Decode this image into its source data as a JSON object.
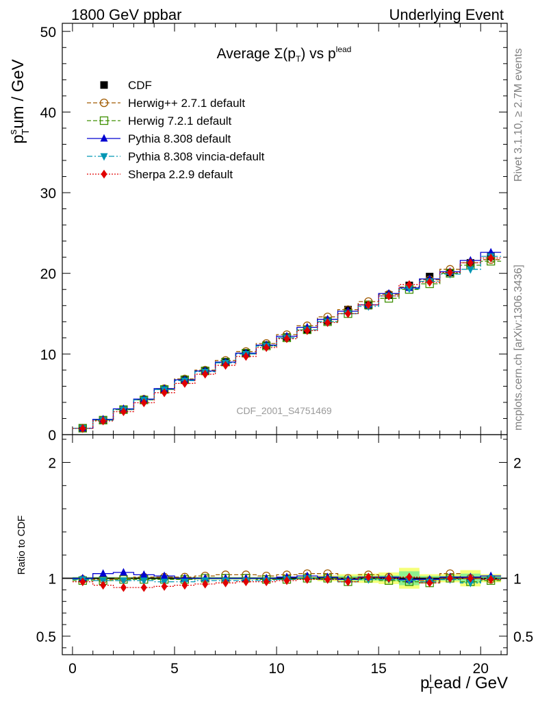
{
  "header": {
    "left": "1800 GeV ppbar",
    "right": "Underlying Event"
  },
  "side_labels": {
    "rivet": "Rivet 3.1.10, ≥ 2.7M events",
    "mcplots": "mcplots.cern.ch [arXiv:1306.3436]"
  },
  "chart_data": [
    {
      "type": "line",
      "title": "Average Σ(p_T) vs p_T^lead",
      "title_parts": {
        "main": "Average ",
        "sigma": "Σ(p",
        "sub_t": "T",
        "close": ") vs p",
        "sup": "lead"
      },
      "watermark": "CDF_2001_S4751469",
      "ylabel_parts": {
        "p": "p",
        "sup": "s",
        "sub": "T",
        "rest": "um / GeV"
      },
      "xlim": [
        -0.5,
        21.3
      ],
      "ylim": [
        0,
        51
      ],
      "yticks": [
        0,
        10,
        20,
        30,
        40,
        50
      ],
      "x": [
        0.5,
        1.5,
        2.5,
        3.5,
        4.5,
        5.5,
        6.5,
        7.5,
        8.5,
        9.5,
        10.5,
        11.5,
        12.5,
        13.5,
        14.5,
        15.5,
        16.5,
        17.5,
        18.5,
        19.5,
        20.5
      ],
      "series": [
        {
          "name": "CDF",
          "color": "#000000",
          "style": "solid",
          "marker": "square-filled",
          "values": [
            0.8,
            1.8,
            3.1,
            4.3,
            5.6,
            6.8,
            7.9,
            9.0,
            10.1,
            11.1,
            12.1,
            13.0,
            14.1,
            15.5,
            16.0,
            17.3,
            18.5,
            19.6,
            20.1,
            21.3,
            22.1
          ]
        },
        {
          "name": "Herwig++ 2.7.1 default",
          "color": "#a05a00",
          "style": "dashed",
          "marker": "circle-open",
          "values": [
            0.8,
            1.8,
            3.1,
            4.4,
            5.7,
            6.9,
            8.0,
            9.2,
            10.3,
            11.3,
            12.4,
            13.5,
            14.6,
            15.5,
            16.5,
            17.4,
            18.3,
            19.2,
            20.5,
            21.3,
            21.7
          ]
        },
        {
          "name": "Herwig 7.2.1 default",
          "color": "#3d8f00",
          "style": "dashed",
          "marker": "square-open",
          "values": [
            0.8,
            1.8,
            3.1,
            4.3,
            5.6,
            6.8,
            7.9,
            9.0,
            10.1,
            11.0,
            12.0,
            13.0,
            14.0,
            15.0,
            16.1,
            16.9,
            18.0,
            18.7,
            20.0,
            21.0,
            21.5
          ]
        },
        {
          "name": "Pythia 8.308 default",
          "color": "#0000d0",
          "style": "solid",
          "marker": "triangle-up",
          "values": [
            0.8,
            1.9,
            3.2,
            4.4,
            5.7,
            6.8,
            7.9,
            9.0,
            10.1,
            11.1,
            12.2,
            13.3,
            14.3,
            15.3,
            16.1,
            17.5,
            18.2,
            19.3,
            20.2,
            21.6,
            22.6
          ]
        },
        {
          "name": "Pythia 8.308 vincia-default",
          "color": "#0096b4",
          "style": "dashdot",
          "marker": "triangle-down",
          "values": [
            0.8,
            1.8,
            3.1,
            4.3,
            5.6,
            6.7,
            7.8,
            8.9,
            10.0,
            11.0,
            12.0,
            13.0,
            14.0,
            15.0,
            15.9,
            17.2,
            18.1,
            19.0,
            19.9,
            20.5,
            22.1
          ]
        },
        {
          "name": "Sherpa 2.2.9 default",
          "color": "#e00000",
          "style": "dotted",
          "marker": "diamond-filled",
          "values": [
            0.77,
            1.7,
            2.85,
            3.95,
            5.2,
            6.35,
            7.5,
            8.6,
            9.7,
            10.8,
            11.9,
            12.9,
            13.9,
            15.0,
            16.1,
            17.2,
            18.6,
            18.9,
            20.1,
            21.3,
            21.9
          ]
        }
      ]
    },
    {
      "type": "line",
      "ylabel": "Ratio to CDF",
      "xlabel_parts": {
        "p": "p",
        "sup": "l",
        "sub": "T",
        "rest": "ead / GeV"
      },
      "xlim": [
        -0.5,
        21.3
      ],
      "ylim": [
        0.34,
        2.24
      ],
      "yticks": [
        0.5,
        1,
        2
      ],
      "xticks": [
        0,
        5,
        10,
        15,
        20
      ],
      "x": [
        0.5,
        1.5,
        2.5,
        3.5,
        4.5,
        5.5,
        6.5,
        7.5,
        8.5,
        9.5,
        10.5,
        11.5,
        12.5,
        13.5,
        14.5,
        15.5,
        16.5,
        17.5,
        18.5,
        19.5,
        20.5
      ],
      "uncertainty_inner": [
        0.01,
        0.01,
        0.01,
        0.01,
        0.01,
        0.01,
        0.01,
        0.01,
        0.01,
        0.01,
        0.01,
        0.01,
        0.015,
        0.02,
        0.02,
        0.025,
        0.06,
        0.02,
        0.02,
        0.04,
        0.02
      ],
      "uncertainty_outer": [
        0.01,
        0.01,
        0.01,
        0.01,
        0.01,
        0.01,
        0.01,
        0.01,
        0.01,
        0.01,
        0.01,
        0.015,
        0.025,
        0.035,
        0.04,
        0.05,
        0.09,
        0.035,
        0.035,
        0.07,
        0.035
      ],
      "series": [
        {
          "name": "Herwig++ 2.7.1 default",
          "color": "#a05a00",
          "style": "dashed",
          "marker": "circle-open",
          "values": [
            0.99,
            0.99,
            1.0,
            1.01,
            1.01,
            1.01,
            1.02,
            1.03,
            1.03,
            1.02,
            1.03,
            1.04,
            1.04,
            1.0,
            1.03,
            1.01,
            0.99,
            0.98,
            1.04,
            1.0,
            0.99
          ]
        },
        {
          "name": "Herwig 7.2.1 default",
          "color": "#3d8f00",
          "style": "dashed",
          "marker": "square-open",
          "values": [
            0.98,
            0.98,
            0.99,
            0.99,
            0.99,
            0.99,
            1.0,
            1.0,
            1.0,
            0.99,
            0.99,
            1.0,
            1.0,
            0.97,
            1.0,
            0.98,
            0.97,
            0.96,
            1.0,
            0.97,
            0.98
          ]
        },
        {
          "name": "Pythia 8.308 default",
          "color": "#0000d0",
          "style": "solid",
          "marker": "triangle-up",
          "values": [
            1.0,
            1.04,
            1.05,
            1.03,
            1.02,
            1.0,
            1.0,
            1.0,
            1.0,
            1.0,
            1.01,
            1.02,
            1.01,
            0.99,
            1.01,
            1.01,
            0.99,
            0.99,
            1.01,
            1.01,
            1.02
          ]
        },
        {
          "name": "Pythia 8.308 vincia-default",
          "color": "#0096b4",
          "style": "dashdot",
          "marker": "triangle-down",
          "values": [
            0.99,
            0.98,
            0.98,
            0.98,
            0.97,
            0.97,
            0.98,
            0.98,
            0.98,
            0.98,
            0.99,
            1.0,
            0.99,
            0.97,
            0.99,
            0.99,
            0.98,
            0.97,
            0.99,
            0.96,
            1.0
          ]
        },
        {
          "name": "Sherpa 2.2.9 default",
          "color": "#e00000",
          "style": "dotted",
          "marker": "diamond-filled",
          "values": [
            0.97,
            0.94,
            0.92,
            0.92,
            0.93,
            0.94,
            0.95,
            0.96,
            0.97,
            0.97,
            0.98,
            0.99,
            0.99,
            0.97,
            1.01,
            1.0,
            1.01,
            0.96,
            1.0,
            1.0,
            0.99
          ]
        }
      ]
    }
  ]
}
